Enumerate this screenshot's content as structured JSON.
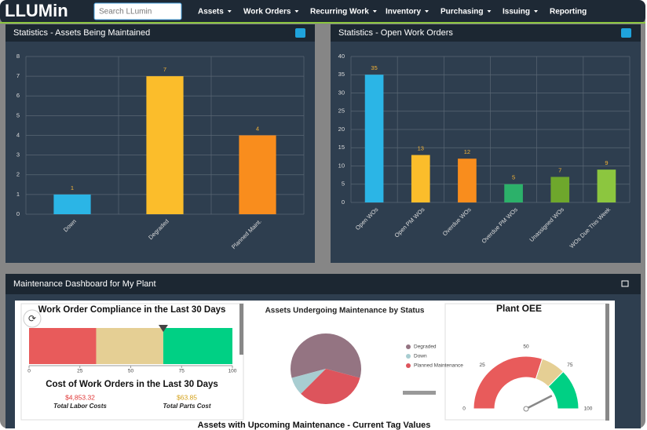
{
  "logo": "LLUMin",
  "search_placeholder": "Search LLumin",
  "nav": [
    "Assets",
    "Work Orders",
    "Recurring Work",
    "Inventory",
    "Purchasing",
    "Issuing",
    "Reporting"
  ],
  "dashboard": {
    "title": "Maintenance Dashboard for My Plant",
    "cost": {
      "title": "Cost of Work Orders in the Last 30 Days",
      "items": [
        {
          "amount": "$4,853.32",
          "label": "Total Labor Costs"
        },
        {
          "amount": "$63.85",
          "label": "Total Parts Cost"
        }
      ]
    },
    "bottom_title": "Assets with Upcoming Maintenance - Current Tag Values"
  },
  "chart_data": [
    {
      "type": "bar",
      "title": "Statistics - Assets Being Maintained",
      "categories": [
        "Down",
        "Degraded",
        "Planned Maint."
      ],
      "values": [
        1,
        7,
        4
      ],
      "colors": [
        "#2bb5e6",
        "#fbbd2b",
        "#f98d1d"
      ],
      "ylim": [
        0,
        8
      ],
      "yticks": [
        0,
        1,
        2,
        3,
        4,
        5,
        6,
        7,
        8
      ],
      "grid": true
    },
    {
      "type": "bar",
      "title": "Statistics - Open Work Orders",
      "categories": [
        "Open WOs",
        "Open PM WOs",
        "Overdue WOs",
        "Overdue PM WOs",
        "Unassigned WOs",
        "WOs Due This Week"
      ],
      "values": [
        35,
        13,
        12,
        5,
        7,
        9
      ],
      "colors": [
        "#2bb5e6",
        "#fbbd2b",
        "#f98d1d",
        "#2cb16a",
        "#6ea72c",
        "#8cc63f"
      ],
      "ylim": [
        0,
        40
      ],
      "yticks": [
        0,
        5,
        10,
        15,
        20,
        25,
        30,
        35,
        40
      ],
      "grid": true
    },
    {
      "type": "bullet",
      "title": "Work Order Compliance in the Last 30 Days",
      "xlim": [
        0,
        100
      ],
      "xticks": [
        0,
        25,
        50,
        75,
        100
      ],
      "value": 66,
      "bands": [
        {
          "from": 0,
          "to": 33,
          "color": "#e85b5b"
        },
        {
          "from": 33,
          "to": 66,
          "color": "#e5cf94"
        },
        {
          "from": 66,
          "to": 100,
          "color": "#00d084"
        }
      ]
    },
    {
      "type": "pie",
      "title": "Assets Undergoing Maintenance by Status",
      "categories": [
        "Degraded",
        "Down",
        "Planned Maintenance"
      ],
      "values": [
        7,
        1,
        4
      ],
      "colors": [
        "#947482",
        "#a8cdd1",
        "#dd545c"
      ]
    },
    {
      "type": "gauge",
      "title": "Plant OEE",
      "ylim": [
        0,
        100
      ],
      "yticks": [
        0,
        25,
        50,
        75,
        100
      ],
      "value": 85,
      "bands": [
        {
          "from": 0,
          "to": 60,
          "color": "#e85b5b"
        },
        {
          "from": 60,
          "to": 75,
          "color": "#e5cf94"
        },
        {
          "from": 75,
          "to": 100,
          "color": "#00d084"
        }
      ]
    }
  ]
}
